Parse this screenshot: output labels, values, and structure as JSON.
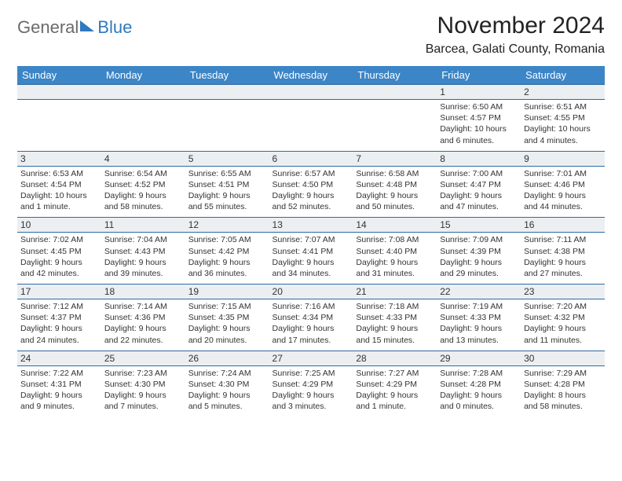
{
  "logo": {
    "text1": "General",
    "text2": "Blue"
  },
  "title": "November 2024",
  "location": "Barcea, Galati County, Romania",
  "colors": {
    "header_bg": "#3c85c6",
    "border": "#2f6aa4",
    "daynum_bg": "#eceff1",
    "text": "#333333",
    "logo_gray": "#6b6b6b",
    "logo_blue": "#2f79bf"
  },
  "weekdays": [
    "Sunday",
    "Monday",
    "Tuesday",
    "Wednesday",
    "Thursday",
    "Friday",
    "Saturday"
  ],
  "weeks": [
    [
      null,
      null,
      null,
      null,
      null,
      {
        "n": "1",
        "sunrise": "Sunrise: 6:50 AM",
        "sunset": "Sunset: 4:57 PM",
        "daylight": "Daylight: 10 hours and 6 minutes."
      },
      {
        "n": "2",
        "sunrise": "Sunrise: 6:51 AM",
        "sunset": "Sunset: 4:55 PM",
        "daylight": "Daylight: 10 hours and 4 minutes."
      }
    ],
    [
      {
        "n": "3",
        "sunrise": "Sunrise: 6:53 AM",
        "sunset": "Sunset: 4:54 PM",
        "daylight": "Daylight: 10 hours and 1 minute."
      },
      {
        "n": "4",
        "sunrise": "Sunrise: 6:54 AM",
        "sunset": "Sunset: 4:52 PM",
        "daylight": "Daylight: 9 hours and 58 minutes."
      },
      {
        "n": "5",
        "sunrise": "Sunrise: 6:55 AM",
        "sunset": "Sunset: 4:51 PM",
        "daylight": "Daylight: 9 hours and 55 minutes."
      },
      {
        "n": "6",
        "sunrise": "Sunrise: 6:57 AM",
        "sunset": "Sunset: 4:50 PM",
        "daylight": "Daylight: 9 hours and 52 minutes."
      },
      {
        "n": "7",
        "sunrise": "Sunrise: 6:58 AM",
        "sunset": "Sunset: 4:48 PM",
        "daylight": "Daylight: 9 hours and 50 minutes."
      },
      {
        "n": "8",
        "sunrise": "Sunrise: 7:00 AM",
        "sunset": "Sunset: 4:47 PM",
        "daylight": "Daylight: 9 hours and 47 minutes."
      },
      {
        "n": "9",
        "sunrise": "Sunrise: 7:01 AM",
        "sunset": "Sunset: 4:46 PM",
        "daylight": "Daylight: 9 hours and 44 minutes."
      }
    ],
    [
      {
        "n": "10",
        "sunrise": "Sunrise: 7:02 AM",
        "sunset": "Sunset: 4:45 PM",
        "daylight": "Daylight: 9 hours and 42 minutes."
      },
      {
        "n": "11",
        "sunrise": "Sunrise: 7:04 AM",
        "sunset": "Sunset: 4:43 PM",
        "daylight": "Daylight: 9 hours and 39 minutes."
      },
      {
        "n": "12",
        "sunrise": "Sunrise: 7:05 AM",
        "sunset": "Sunset: 4:42 PM",
        "daylight": "Daylight: 9 hours and 36 minutes."
      },
      {
        "n": "13",
        "sunrise": "Sunrise: 7:07 AM",
        "sunset": "Sunset: 4:41 PM",
        "daylight": "Daylight: 9 hours and 34 minutes."
      },
      {
        "n": "14",
        "sunrise": "Sunrise: 7:08 AM",
        "sunset": "Sunset: 4:40 PM",
        "daylight": "Daylight: 9 hours and 31 minutes."
      },
      {
        "n": "15",
        "sunrise": "Sunrise: 7:09 AM",
        "sunset": "Sunset: 4:39 PM",
        "daylight": "Daylight: 9 hours and 29 minutes."
      },
      {
        "n": "16",
        "sunrise": "Sunrise: 7:11 AM",
        "sunset": "Sunset: 4:38 PM",
        "daylight": "Daylight: 9 hours and 27 minutes."
      }
    ],
    [
      {
        "n": "17",
        "sunrise": "Sunrise: 7:12 AM",
        "sunset": "Sunset: 4:37 PM",
        "daylight": "Daylight: 9 hours and 24 minutes."
      },
      {
        "n": "18",
        "sunrise": "Sunrise: 7:14 AM",
        "sunset": "Sunset: 4:36 PM",
        "daylight": "Daylight: 9 hours and 22 minutes."
      },
      {
        "n": "19",
        "sunrise": "Sunrise: 7:15 AM",
        "sunset": "Sunset: 4:35 PM",
        "daylight": "Daylight: 9 hours and 20 minutes."
      },
      {
        "n": "20",
        "sunrise": "Sunrise: 7:16 AM",
        "sunset": "Sunset: 4:34 PM",
        "daylight": "Daylight: 9 hours and 17 minutes."
      },
      {
        "n": "21",
        "sunrise": "Sunrise: 7:18 AM",
        "sunset": "Sunset: 4:33 PM",
        "daylight": "Daylight: 9 hours and 15 minutes."
      },
      {
        "n": "22",
        "sunrise": "Sunrise: 7:19 AM",
        "sunset": "Sunset: 4:33 PM",
        "daylight": "Daylight: 9 hours and 13 minutes."
      },
      {
        "n": "23",
        "sunrise": "Sunrise: 7:20 AM",
        "sunset": "Sunset: 4:32 PM",
        "daylight": "Daylight: 9 hours and 11 minutes."
      }
    ],
    [
      {
        "n": "24",
        "sunrise": "Sunrise: 7:22 AM",
        "sunset": "Sunset: 4:31 PM",
        "daylight": "Daylight: 9 hours and 9 minutes."
      },
      {
        "n": "25",
        "sunrise": "Sunrise: 7:23 AM",
        "sunset": "Sunset: 4:30 PM",
        "daylight": "Daylight: 9 hours and 7 minutes."
      },
      {
        "n": "26",
        "sunrise": "Sunrise: 7:24 AM",
        "sunset": "Sunset: 4:30 PM",
        "daylight": "Daylight: 9 hours and 5 minutes."
      },
      {
        "n": "27",
        "sunrise": "Sunrise: 7:25 AM",
        "sunset": "Sunset: 4:29 PM",
        "daylight": "Daylight: 9 hours and 3 minutes."
      },
      {
        "n": "28",
        "sunrise": "Sunrise: 7:27 AM",
        "sunset": "Sunset: 4:29 PM",
        "daylight": "Daylight: 9 hours and 1 minute."
      },
      {
        "n": "29",
        "sunrise": "Sunrise: 7:28 AM",
        "sunset": "Sunset: 4:28 PM",
        "daylight": "Daylight: 9 hours and 0 minutes."
      },
      {
        "n": "30",
        "sunrise": "Sunrise: 7:29 AM",
        "sunset": "Sunset: 4:28 PM",
        "daylight": "Daylight: 8 hours and 58 minutes."
      }
    ]
  ]
}
